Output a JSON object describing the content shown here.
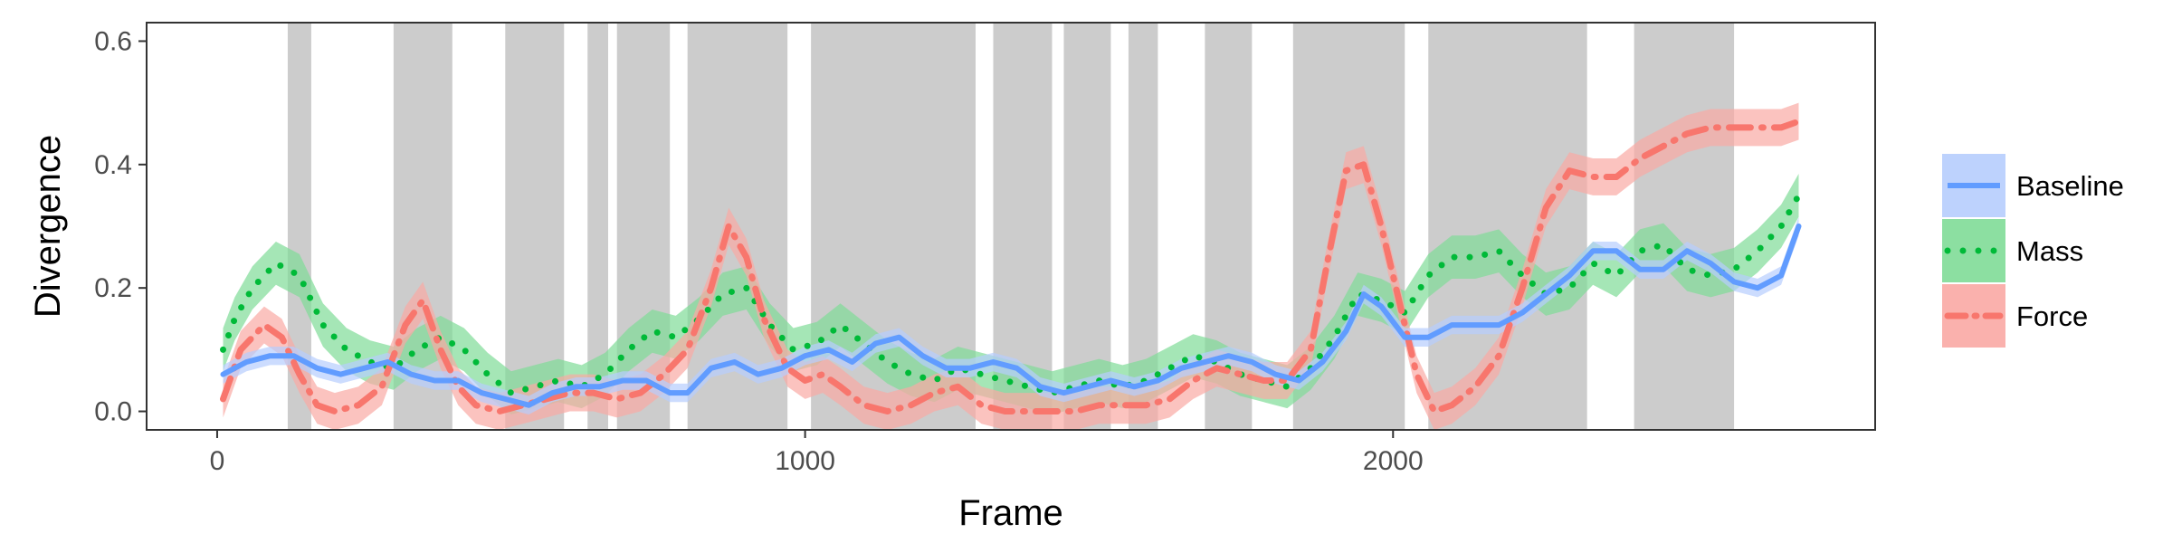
{
  "chart_data": {
    "type": "line",
    "title": "",
    "xlabel": "Frame",
    "ylabel": "Divergence",
    "xlim": [
      -120,
      2820
    ],
    "ylim": [
      -0.03,
      0.63
    ],
    "x_ticks": [
      0,
      1000,
      2000
    ],
    "x_tick_labels": [
      "0",
      "1000",
      "2000"
    ],
    "y_ticks": [
      0.0,
      0.2,
      0.4,
      0.6
    ],
    "y_tick_labels": [
      "0.0",
      "0.2",
      "0.4",
      "0.6"
    ],
    "grid": false,
    "legend_position": "right",
    "shaded_intervals": [
      [
        120,
        160
      ],
      [
        300,
        400
      ],
      [
        490,
        590
      ],
      [
        630,
        665
      ],
      [
        680,
        770
      ],
      [
        800,
        970
      ],
      [
        1010,
        1290
      ],
      [
        1320,
        1420
      ],
      [
        1440,
        1520
      ],
      [
        1550,
        1600
      ],
      [
        1680,
        1760
      ],
      [
        1830,
        2020
      ],
      [
        2060,
        2330
      ],
      [
        2410,
        2580
      ]
    ],
    "shade_color": "#cccccc",
    "series": [
      {
        "name": "Mass",
        "color": "#00ba38",
        "band_color": "#7fdc97",
        "style": "dotted",
        "points": [
          [
            10,
            0.1
          ],
          [
            30,
            0.15
          ],
          [
            60,
            0.2
          ],
          [
            100,
            0.24
          ],
          [
            140,
            0.22
          ],
          [
            180,
            0.14
          ],
          [
            220,
            0.1
          ],
          [
            260,
            0.08
          ],
          [
            300,
            0.07
          ],
          [
            340,
            0.1
          ],
          [
            380,
            0.12
          ],
          [
            420,
            0.1
          ],
          [
            460,
            0.06
          ],
          [
            500,
            0.03
          ],
          [
            540,
            0.04
          ],
          [
            580,
            0.05
          ],
          [
            620,
            0.04
          ],
          [
            660,
            0.06
          ],
          [
            700,
            0.1
          ],
          [
            740,
            0.13
          ],
          [
            780,
            0.12
          ],
          [
            820,
            0.15
          ],
          [
            860,
            0.19
          ],
          [
            900,
            0.2
          ],
          [
            940,
            0.14
          ],
          [
            980,
            0.1
          ],
          [
            1020,
            0.11
          ],
          [
            1060,
            0.14
          ],
          [
            1100,
            0.11
          ],
          [
            1140,
            0.08
          ],
          [
            1180,
            0.06
          ],
          [
            1220,
            0.05
          ],
          [
            1260,
            0.07
          ],
          [
            1300,
            0.06
          ],
          [
            1340,
            0.05
          ],
          [
            1380,
            0.04
          ],
          [
            1420,
            0.03
          ],
          [
            1460,
            0.04
          ],
          [
            1500,
            0.05
          ],
          [
            1540,
            0.04
          ],
          [
            1580,
            0.05
          ],
          [
            1620,
            0.07
          ],
          [
            1660,
            0.09
          ],
          [
            1700,
            0.08
          ],
          [
            1740,
            0.06
          ],
          [
            1780,
            0.05
          ],
          [
            1820,
            0.04
          ],
          [
            1860,
            0.07
          ],
          [
            1900,
            0.12
          ],
          [
            1940,
            0.19
          ],
          [
            1980,
            0.18
          ],
          [
            2020,
            0.16
          ],
          [
            2060,
            0.22
          ],
          [
            2100,
            0.25
          ],
          [
            2140,
            0.25
          ],
          [
            2180,
            0.26
          ],
          [
            2220,
            0.22
          ],
          [
            2260,
            0.19
          ],
          [
            2300,
            0.2
          ],
          [
            2340,
            0.24
          ],
          [
            2380,
            0.22
          ],
          [
            2420,
            0.26
          ],
          [
            2460,
            0.27
          ],
          [
            2500,
            0.23
          ],
          [
            2540,
            0.22
          ],
          [
            2580,
            0.23
          ],
          [
            2620,
            0.26
          ],
          [
            2660,
            0.3
          ],
          [
            2690,
            0.35
          ]
        ]
      },
      {
        "name": "Force",
        "color": "#f8766d",
        "band_color": "#f9a9a4",
        "style": "dashdot",
        "points": [
          [
            10,
            0.02
          ],
          [
            40,
            0.1
          ],
          [
            80,
            0.14
          ],
          [
            110,
            0.12
          ],
          [
            140,
            0.06
          ],
          [
            170,
            0.01
          ],
          [
            200,
            0.0
          ],
          [
            240,
            0.01
          ],
          [
            280,
            0.04
          ],
          [
            320,
            0.14
          ],
          [
            350,
            0.18
          ],
          [
            380,
            0.1
          ],
          [
            410,
            0.04
          ],
          [
            440,
            0.01
          ],
          [
            480,
            0.0
          ],
          [
            520,
            0.01
          ],
          [
            560,
            0.02
          ],
          [
            600,
            0.03
          ],
          [
            640,
            0.03
          ],
          [
            680,
            0.02
          ],
          [
            720,
            0.03
          ],
          [
            760,
            0.06
          ],
          [
            800,
            0.1
          ],
          [
            840,
            0.2
          ],
          [
            870,
            0.3
          ],
          [
            900,
            0.25
          ],
          [
            930,
            0.15
          ],
          [
            970,
            0.07
          ],
          [
            1000,
            0.05
          ],
          [
            1030,
            0.06
          ],
          [
            1060,
            0.04
          ],
          [
            1100,
            0.01
          ],
          [
            1140,
            0.0
          ],
          [
            1180,
            0.01
          ],
          [
            1220,
            0.03
          ],
          [
            1260,
            0.04
          ],
          [
            1300,
            0.01
          ],
          [
            1340,
            0.0
          ],
          [
            1380,
            0.0
          ],
          [
            1420,
            0.0
          ],
          [
            1460,
            0.0
          ],
          [
            1500,
            0.01
          ],
          [
            1540,
            0.01
          ],
          [
            1580,
            0.01
          ],
          [
            1620,
            0.02
          ],
          [
            1660,
            0.05
          ],
          [
            1700,
            0.07
          ],
          [
            1740,
            0.06
          ],
          [
            1780,
            0.05
          ],
          [
            1820,
            0.05
          ],
          [
            1860,
            0.1
          ],
          [
            1890,
            0.25
          ],
          [
            1920,
            0.39
          ],
          [
            1950,
            0.4
          ],
          [
            1980,
            0.3
          ],
          [
            2010,
            0.18
          ],
          [
            2040,
            0.06
          ],
          [
            2070,
            0.0
          ],
          [
            2100,
            0.01
          ],
          [
            2140,
            0.04
          ],
          [
            2180,
            0.09
          ],
          [
            2220,
            0.2
          ],
          [
            2260,
            0.33
          ],
          [
            2300,
            0.39
          ],
          [
            2340,
            0.38
          ],
          [
            2380,
            0.38
          ],
          [
            2420,
            0.41
          ],
          [
            2460,
            0.43
          ],
          [
            2500,
            0.45
          ],
          [
            2540,
            0.46
          ],
          [
            2580,
            0.46
          ],
          [
            2620,
            0.46
          ],
          [
            2660,
            0.46
          ],
          [
            2690,
            0.47
          ]
        ]
      },
      {
        "name": "Baseline",
        "color": "#619cff",
        "band_color": "#b6cdfd",
        "style": "solid",
        "points": [
          [
            10,
            0.06
          ],
          [
            50,
            0.08
          ],
          [
            90,
            0.09
          ],
          [
            130,
            0.09
          ],
          [
            170,
            0.07
          ],
          [
            210,
            0.06
          ],
          [
            250,
            0.07
          ],
          [
            290,
            0.08
          ],
          [
            330,
            0.06
          ],
          [
            370,
            0.05
          ],
          [
            410,
            0.05
          ],
          [
            450,
            0.03
          ],
          [
            490,
            0.02
          ],
          [
            530,
            0.01
          ],
          [
            570,
            0.03
          ],
          [
            610,
            0.04
          ],
          [
            650,
            0.04
          ],
          [
            690,
            0.05
          ],
          [
            730,
            0.05
          ],
          [
            770,
            0.03
          ],
          [
            800,
            0.03
          ],
          [
            840,
            0.07
          ],
          [
            880,
            0.08
          ],
          [
            920,
            0.06
          ],
          [
            960,
            0.07
          ],
          [
            1000,
            0.09
          ],
          [
            1040,
            0.1
          ],
          [
            1080,
            0.08
          ],
          [
            1120,
            0.11
          ],
          [
            1160,
            0.12
          ],
          [
            1200,
            0.09
          ],
          [
            1240,
            0.07
          ],
          [
            1280,
            0.07
          ],
          [
            1320,
            0.08
          ],
          [
            1360,
            0.07
          ],
          [
            1400,
            0.04
          ],
          [
            1440,
            0.03
          ],
          [
            1480,
            0.04
          ],
          [
            1520,
            0.05
          ],
          [
            1560,
            0.04
          ],
          [
            1600,
            0.05
          ],
          [
            1640,
            0.07
          ],
          [
            1680,
            0.08
          ],
          [
            1720,
            0.09
          ],
          [
            1760,
            0.08
          ],
          [
            1800,
            0.06
          ],
          [
            1840,
            0.05
          ],
          [
            1880,
            0.08
          ],
          [
            1920,
            0.13
          ],
          [
            1950,
            0.19
          ],
          [
            1980,
            0.17
          ],
          [
            2020,
            0.12
          ],
          [
            2060,
            0.12
          ],
          [
            2100,
            0.14
          ],
          [
            2140,
            0.14
          ],
          [
            2180,
            0.14
          ],
          [
            2220,
            0.16
          ],
          [
            2260,
            0.19
          ],
          [
            2300,
            0.22
          ],
          [
            2340,
            0.26
          ],
          [
            2380,
            0.26
          ],
          [
            2420,
            0.23
          ],
          [
            2460,
            0.23
          ],
          [
            2500,
            0.26
          ],
          [
            2540,
            0.24
          ],
          [
            2580,
            0.21
          ],
          [
            2620,
            0.2
          ],
          [
            2660,
            0.22
          ],
          [
            2690,
            0.3
          ]
        ]
      }
    ],
    "legend": [
      {
        "label": "Baseline",
        "series": "Baseline"
      },
      {
        "label": "Mass",
        "series": "Mass"
      },
      {
        "label": "Force",
        "series": "Force"
      }
    ]
  }
}
